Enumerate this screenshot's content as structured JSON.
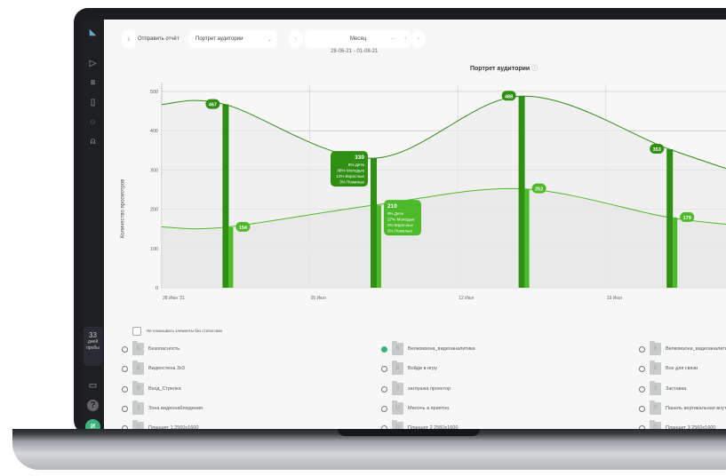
{
  "sidebar": {
    "icons": [
      "logo-icon",
      "play-icon",
      "filter-icon",
      "document-icon",
      "loading-icon",
      "user-icon"
    ],
    "trial_days": "33",
    "trial_label": "дней пробы",
    "avatar": "И"
  },
  "toolbar": {
    "send_report": "Отправить отчёт",
    "report_select": "Портрет аудитории",
    "period": "Месяц",
    "date_range": "28-06-21 - 01-08-21"
  },
  "chart_data": {
    "type": "line",
    "title": "Портрет аудитории",
    "ylabel": "Количество просмотров",
    "ylim": [
      0,
      500
    ],
    "yticks": [
      "0",
      "100",
      "200",
      "300",
      "400",
      "500"
    ],
    "xticks": [
      "28 Июн '21",
      "05 Июл",
      "12 Июл",
      "19 Июл"
    ],
    "grid": true,
    "series": [
      {
        "color": "#2f8f12",
        "x": [
          "2021-06-28",
          "2021-07-01",
          "2021-07-08",
          "2021-07-15",
          "2021-07-22",
          "2021-07-26"
        ],
        "values": [
          467,
          467,
          330,
          488,
          353,
          280
        ]
      },
      {
        "color": "#4dba2a",
        "x": [
          "2021-06-28",
          "2021-07-01",
          "2021-07-08",
          "2021-07-15",
          "2021-07-22",
          "2021-07-26"
        ],
        "values": [
          155,
          154,
          210,
          252,
          179,
          156
        ]
      }
    ],
    "labels": [
      {
        "series": 0,
        "index": 1,
        "text": "467"
      },
      {
        "series": 1,
        "index": 1,
        "text": "154"
      },
      {
        "series": 0,
        "index": 2,
        "text": "330",
        "details": [
          "8% Дети",
          "38% Молодые",
          "12% Взрослые",
          "3% Пожилые"
        ]
      },
      {
        "series": 1,
        "index": 2,
        "text": "210",
        "details": [
          "9% Дети",
          "27% Молодые",
          "2% Взрослые",
          "2% Пожилые"
        ]
      },
      {
        "series": 0,
        "index": 3,
        "text": "488"
      },
      {
        "series": 1,
        "index": 3,
        "text": "252"
      },
      {
        "series": 0,
        "index": 4,
        "text": "353"
      },
      {
        "series": 1,
        "index": 4,
        "text": "179"
      }
    ]
  },
  "list": {
    "hide_empty": "Не показывать элементы без статистики",
    "items": [
      {
        "label": "Безопасность",
        "letter": "Б",
        "selected": false
      },
      {
        "label": "Велкомзона_видеоаналитика",
        "letter": "В",
        "selected": true
      },
      {
        "label": "Велкомзона_видеоаналитика",
        "letter": "В",
        "selected": false
      },
      {
        "label": "Видеостена 3x3",
        "letter": "В",
        "selected": false
      },
      {
        "label": "Войди в игру",
        "letter": "В",
        "selected": false
      },
      {
        "label": "Все для связи",
        "letter": "В",
        "selected": false
      },
      {
        "label": "Вход_Стрелка",
        "letter": "В",
        "selected": false
      },
      {
        "label": "заглушка проектор",
        "letter": "З",
        "selected": false
      },
      {
        "label": "Заставка",
        "letter": "З",
        "selected": false
      },
      {
        "label": "Зона видеонаблюдения",
        "letter": "З",
        "selected": false
      },
      {
        "label": "Мелочь а приятно",
        "letter": "М",
        "selected": false
      },
      {
        "label": "Панель вертикальная внутр",
        "letter": "П",
        "selected": false
      },
      {
        "label": "Планшет 1 2560x1600",
        "letter": "П",
        "selected": false
      },
      {
        "label": "Планшет 2 2560x1600",
        "letter": "П",
        "selected": false
      },
      {
        "label": "Планшет 3 2560x1600",
        "letter": "П",
        "selected": false
      }
    ]
  }
}
